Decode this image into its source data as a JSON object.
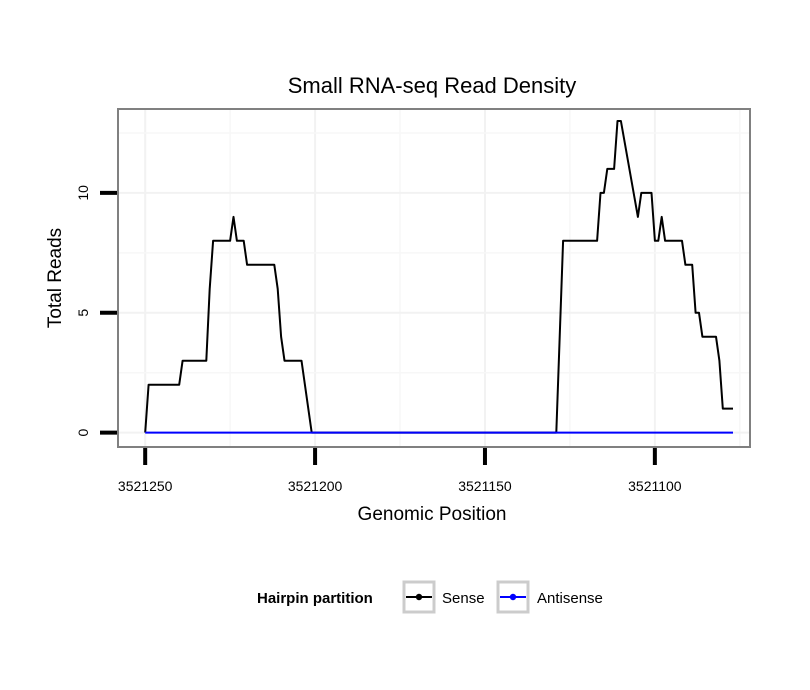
{
  "chart_data": {
    "type": "line",
    "title": "Small RNA-seq Read Density",
    "xlabel": "Genomic Position",
    "ylabel": "Total Reads",
    "xlim": [
      3521258,
      3521072
    ],
    "x_reversed": true,
    "ylim": [
      -0.6,
      13.5
    ],
    "xticks": [
      3521250,
      3521200,
      3521150,
      3521100
    ],
    "xtick_labels": [
      "3521250",
      "3521200",
      "3521150",
      "3521100"
    ],
    "yticks": [
      0,
      5,
      10
    ],
    "ytick_labels": [
      "0",
      "5",
      "10"
    ],
    "grid": true,
    "legend": {
      "title": "Hairpin partition",
      "position": "bottom",
      "entries": [
        "Sense",
        "Antisense"
      ]
    },
    "series": [
      {
        "name": "Sense",
        "color": "#000000",
        "points": [
          [
            3521250,
            0
          ],
          [
            3521249,
            2
          ],
          [
            3521240,
            2
          ],
          [
            3521239,
            3
          ],
          [
            3521232,
            3
          ],
          [
            3521231,
            6
          ],
          [
            3521230,
            8
          ],
          [
            3521225,
            8
          ],
          [
            3521224,
            9
          ],
          [
            3521223,
            8
          ],
          [
            3521221,
            8
          ],
          [
            3521220,
            7
          ],
          [
            3521212,
            7
          ],
          [
            3521211,
            6
          ],
          [
            3521210,
            4
          ],
          [
            3521209,
            3
          ],
          [
            3521204,
            3
          ],
          [
            3521201,
            0
          ],
          [
            3521129,
            0
          ],
          [
            3521127,
            8
          ],
          [
            3521117,
            8
          ],
          [
            3521116,
            10
          ],
          [
            3521115,
            10
          ],
          [
            3521114,
            11
          ],
          [
            3521112,
            11
          ],
          [
            3521111,
            13
          ],
          [
            3521110,
            13
          ],
          [
            3521105,
            9
          ],
          [
            3521104,
            10
          ],
          [
            3521101,
            10
          ],
          [
            3521100,
            8
          ],
          [
            3521099,
            8
          ],
          [
            3521098,
            9
          ],
          [
            3521097,
            8
          ],
          [
            3521092,
            8
          ],
          [
            3521091,
            7
          ],
          [
            3521089,
            7
          ],
          [
            3521088,
            5
          ],
          [
            3521087,
            5
          ],
          [
            3521086,
            4
          ],
          [
            3521082,
            4
          ],
          [
            3521081,
            3
          ],
          [
            3521080,
            1
          ],
          [
            3521077,
            1
          ]
        ]
      },
      {
        "name": "Antisense",
        "color": "#0000ff",
        "points": [
          [
            3521250,
            0
          ],
          [
            3521077,
            0
          ]
        ]
      }
    ]
  }
}
